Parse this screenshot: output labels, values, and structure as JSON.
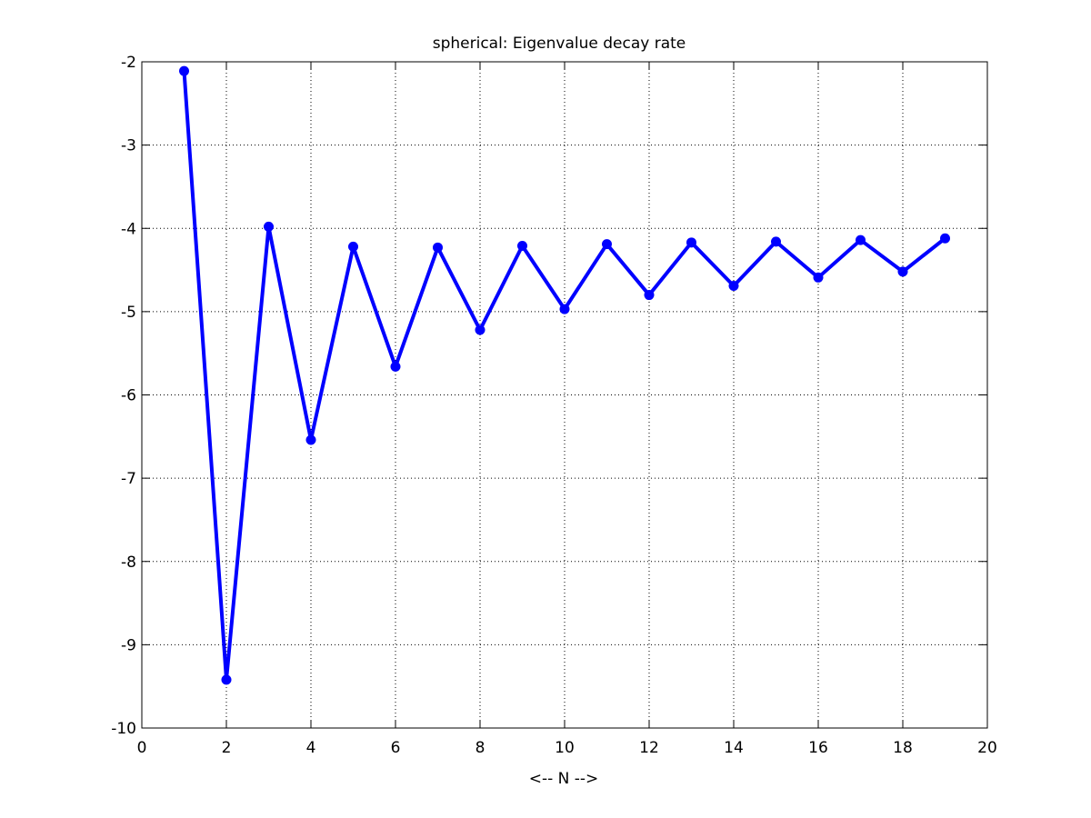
{
  "chart_data": {
    "type": "line",
    "title": "spherical: Eigenvalue decay rate",
    "xlabel": "<-- N -->",
    "ylabel": "",
    "xlim": [
      0,
      20
    ],
    "ylim": [
      -10,
      -2
    ],
    "xticks": [
      0,
      2,
      4,
      6,
      8,
      10,
      12,
      14,
      16,
      18,
      20
    ],
    "yticks": [
      -10,
      -9,
      -8,
      -7,
      -6,
      -5,
      -4,
      -3,
      -2
    ],
    "grid": true,
    "grid_style": "dotted",
    "series": [
      {
        "color": "#0000ff",
        "marker": "circle",
        "x": [
          1,
          2,
          3,
          4,
          5,
          6,
          7,
          8,
          9,
          10,
          11,
          12,
          13,
          14,
          15,
          16,
          17,
          18,
          19
        ],
        "y": [
          -2.11,
          -9.42,
          -3.98,
          -6.54,
          -4.22,
          -5.66,
          -4.23,
          -5.22,
          -4.21,
          -4.97,
          -4.19,
          -4.8,
          -4.17,
          -4.69,
          -4.16,
          -4.59,
          -4.14,
          -4.52,
          -4.12
        ]
      }
    ]
  }
}
